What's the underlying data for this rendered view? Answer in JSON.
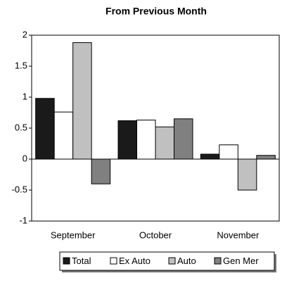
{
  "chart_data": {
    "type": "bar",
    "title": "From Previous Month",
    "categories": [
      "September",
      "October",
      "November"
    ],
    "series": [
      {
        "name": "Total",
        "color": "#1a1a1a",
        "values": [
          0.98,
          0.62,
          0.08
        ]
      },
      {
        "name": "Ex Auto",
        "color": "#ffffff",
        "values": [
          0.76,
          0.63,
          0.23
        ]
      },
      {
        "name": "Auto",
        "color": "#c0c0c0",
        "values": [
          1.88,
          0.52,
          -0.5
        ]
      },
      {
        "name": "Gen Mer",
        "color": "#808080",
        "values": [
          -0.4,
          0.65,
          0.06
        ]
      }
    ],
    "ylim": [
      -1,
      2
    ],
    "yticks": [
      -1,
      -0.5,
      0,
      0.5,
      1,
      1.5,
      2
    ],
    "grid": false,
    "legend": "bottom"
  }
}
